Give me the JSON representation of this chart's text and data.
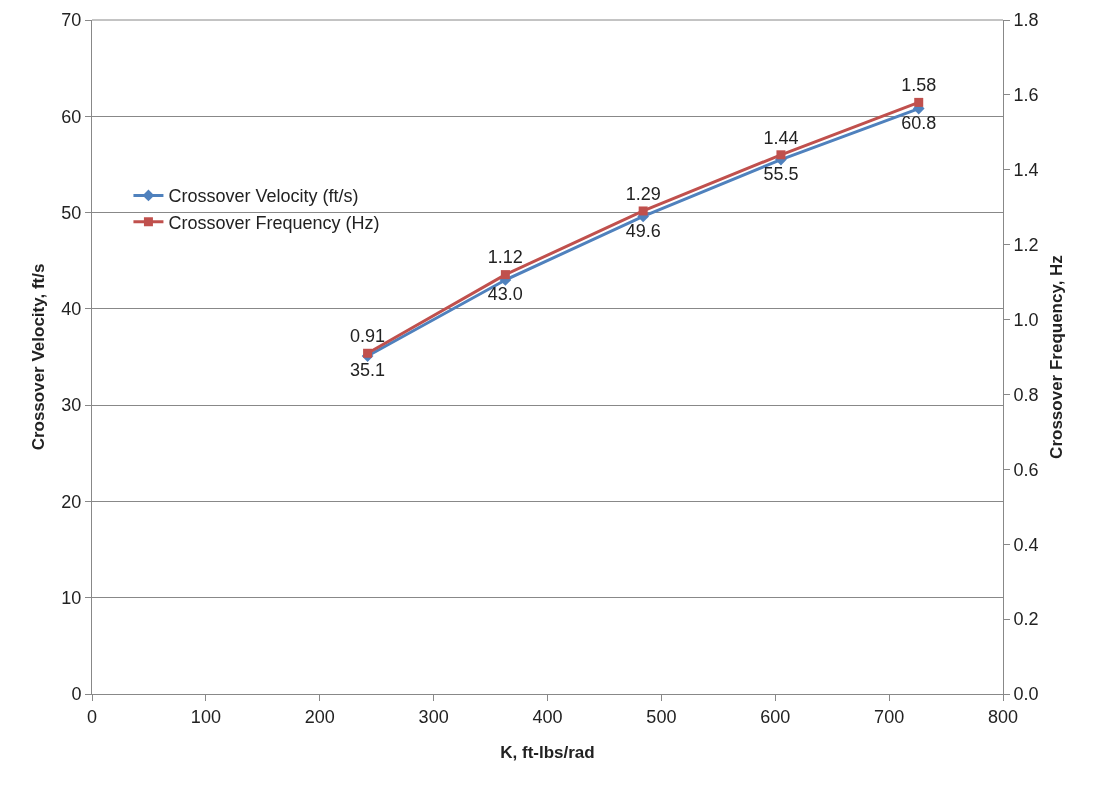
{
  "chart_data": {
    "type": "line",
    "xlabel": "K, ft-lbs/rad",
    "ylabel": "Crossover Velocity, ft/s",
    "y2label": "Crossover Frequency, Hz",
    "x": [
      242,
      363,
      484,
      605,
      726
    ],
    "series": [
      {
        "name": "Crossover Velocity (ft/s)",
        "color": "#4f81bd",
        "marker": "diamond",
        "values": [
          35.1,
          43.0,
          49.6,
          55.5,
          60.8
        ],
        "value_labels": [
          "35.1",
          "43.0",
          "49.6",
          "55.5",
          "60.8"
        ]
      },
      {
        "name": "Crossover Frequency (Hz)",
        "color": "#c0504d",
        "marker": "square",
        "axis": "y2",
        "values": [
          0.91,
          1.12,
          1.29,
          1.44,
          1.58
        ],
        "value_labels": [
          "0.91",
          "1.12",
          "1.29",
          "1.44",
          "1.58"
        ]
      }
    ],
    "xlim": [
      0,
      800
    ],
    "xticks": [
      0,
      100,
      200,
      300,
      400,
      500,
      600,
      700,
      800
    ],
    "ylim": [
      0,
      70
    ],
    "yticks": [
      0,
      10,
      20,
      30,
      40,
      50,
      60,
      70
    ],
    "y2lim": [
      0,
      1.8
    ],
    "y2ticks": [
      {
        "value": 0,
        "label": "0.0"
      },
      0.2,
      0.4,
      0.6,
      0.8,
      {
        "value": 1,
        "label": "1.0"
      },
      1.2,
      1.4,
      1.6,
      1.8
    ],
    "grid": "y",
    "legend": "left",
    "line_style": "solid"
  }
}
